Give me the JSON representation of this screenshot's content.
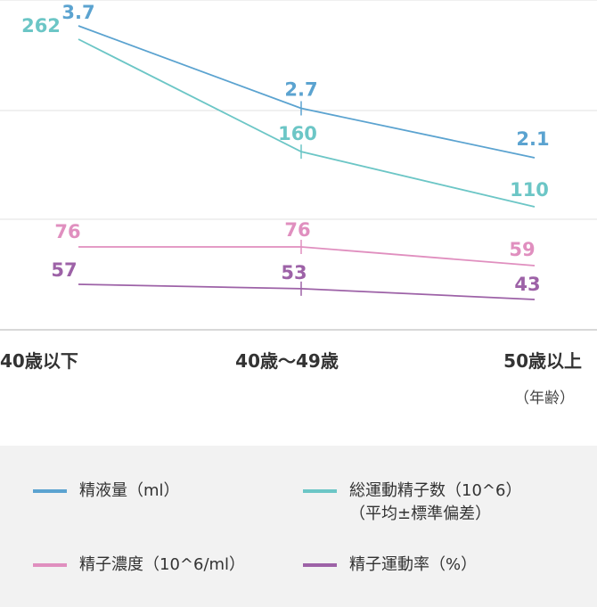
{
  "chart_data": {
    "type": "line",
    "categories": [
      "40歳以下",
      "40歳〜49歳",
      "50歳以上"
    ],
    "x_unit": "（年齢）",
    "series": [
      {
        "name": "精液量（ml）",
        "values": [
          3.7,
          2.7,
          2.1
        ],
        "labels": [
          "3.7",
          "2.7",
          "2.1"
        ],
        "color": "#5ba3d0"
      },
      {
        "name": "総運動精子数（10^6）",
        "sub": "（平均±標準偏差）",
        "values": [
          262,
          160,
          110
        ],
        "labels": [
          "262",
          "160",
          "110"
        ],
        "color": "#6cc6c6"
      },
      {
        "name": "精子濃度（10^6/ml）",
        "values": [
          76,
          76,
          59
        ],
        "labels": [
          "76",
          "76",
          "59"
        ],
        "color": "#e08fbf"
      },
      {
        "name": "精子運動率（%）",
        "values": [
          57,
          53,
          43
        ],
        "labels": [
          "57",
          "53",
          "43"
        ],
        "color": "#9d62a7"
      }
    ],
    "grid": true,
    "legend_position": "bottom"
  }
}
